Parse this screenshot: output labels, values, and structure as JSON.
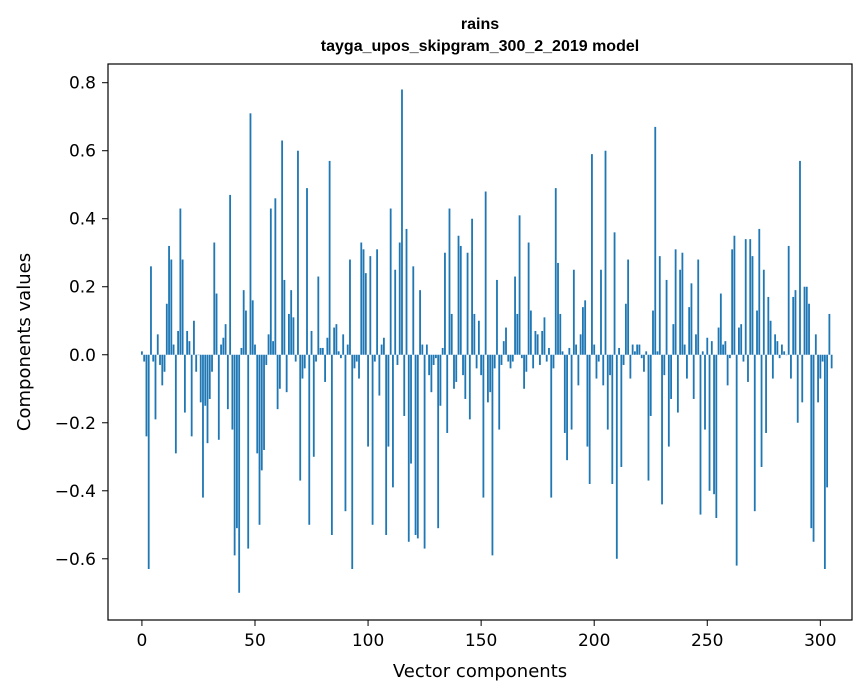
{
  "chart_data": {
    "type": "bar",
    "title": "rains",
    "subtitle": "tayga_upos_skipgram_300_2_2019 model",
    "xlabel": "Vector components",
    "ylabel": "Components values",
    "xlim": [
      -15.0,
      314.0
    ],
    "ylim": [
      -0.78,
      0.855
    ],
    "xticks": [
      0,
      50,
      100,
      150,
      200,
      250,
      300
    ],
    "xtick_labels": [
      "0",
      "50",
      "100",
      "150",
      "200",
      "250",
      "300"
    ],
    "yticks": [
      -0.6,
      -0.4,
      -0.2,
      0.0,
      0.2,
      0.4,
      0.6,
      0.8
    ],
    "ytick_labels": [
      "−0.6",
      "−0.4",
      "−0.2",
      "0.0",
      "0.2",
      "0.4",
      "0.6",
      "0.8"
    ],
    "bar_color": "#1f77b4",
    "grid": false,
    "legend": "none",
    "values": [
      0.01,
      -0.02,
      -0.24,
      -0.63,
      0.26,
      -0.02,
      -0.19,
      0.06,
      -0.03,
      -0.09,
      -0.05,
      0.15,
      0.32,
      0.28,
      0.03,
      -0.29,
      0.07,
      0.43,
      0.28,
      -0.17,
      0.07,
      0.04,
      -0.24,
      0.1,
      -0.05,
      0.0,
      -0.14,
      -0.42,
      -0.15,
      -0.26,
      -0.13,
      -0.05,
      0.33,
      0.18,
      -0.25,
      0.03,
      0.05,
      0.09,
      -0.16,
      0.47,
      -0.22,
      -0.59,
      -0.51,
      -0.7,
      0.02,
      0.19,
      0.13,
      -0.57,
      0.71,
      0.16,
      0.03,
      -0.29,
      -0.5,
      -0.34,
      -0.28,
      -0.03,
      0.06,
      0.43,
      0.04,
      0.46,
      -0.16,
      -0.1,
      0.63,
      0.22,
      -0.11,
      0.12,
      0.19,
      0.11,
      -0.02,
      0.6,
      -0.37,
      -0.07,
      -0.04,
      0.49,
      -0.5,
      0.07,
      -0.3,
      -0.02,
      0.23,
      0.02,
      0.02,
      -0.08,
      0.05,
      0.57,
      -0.53,
      0.08,
      0.09,
      0.01,
      -0.01,
      0.06,
      -0.46,
      0.03,
      0.28,
      -0.63,
      -0.04,
      -0.02,
      -0.07,
      0.33,
      0.31,
      0.24,
      -0.27,
      0.29,
      -0.5,
      -0.02,
      0.31,
      -0.12,
      0.03,
      0.05,
      -0.53,
      -0.27,
      0.43,
      -0.39,
      0.25,
      -0.03,
      0.33,
      0.78,
      -0.18,
      0.37,
      -0.55,
      -0.32,
      0.26,
      -0.53,
      -0.54,
      0.19,
      0.03,
      -0.57,
      0.03,
      -0.06,
      -0.11,
      -0.03,
      -0.01,
      -0.51,
      -0.15,
      0.02,
      0.3,
      -0.23,
      0.43,
      0.12,
      -0.1,
      -0.08,
      0.35,
      0.32,
      -0.06,
      -0.13,
      0.3,
      -0.19,
      0.4,
      0.12,
      -0.04,
      0.1,
      -0.06,
      -0.42,
      0.48,
      -0.14,
      -0.11,
      -0.59,
      -0.04,
      0.22,
      -0.22,
      -0.03,
      0.04,
      0.08,
      -0.02,
      -0.04,
      -0.02,
      0.23,
      0.12,
      0.41,
      -0.01,
      -0.1,
      -0.05,
      0.33,
      0.13,
      -0.04,
      0.07,
      0.06,
      -0.03,
      0.07,
      0.11,
      -0.02,
      0.02,
      -0.42,
      -0.04,
      0.49,
      0.27,
      0.12,
      0.01,
      -0.23,
      -0.31,
      0.02,
      -0.22,
      0.25,
      0.03,
      -0.09,
      0.06,
      0.14,
      0.16,
      -0.27,
      -0.38,
      0.59,
      0.03,
      -0.07,
      -0.02,
      0.25,
      -0.09,
      0.6,
      -0.22,
      -0.06,
      -0.38,
      0.36,
      -0.6,
      0.02,
      -0.33,
      -0.03,
      0.15,
      0.28,
      -0.07,
      0.03,
      0.01,
      0.03,
      0.03,
      -0.01,
      -0.05,
      0.01,
      -0.37,
      -0.18,
      0.13,
      0.67,
      0.01,
      0.29,
      -0.44,
      -0.06,
      0.22,
      -0.27,
      -0.13,
      0.09,
      0.31,
      -0.17,
      0.25,
      0.3,
      0.03,
      -0.07,
      0.14,
      0.21,
      -0.13,
      0.06,
      0.28,
      -0.47,
      0.01,
      -0.22,
      0.05,
      -0.4,
      0.04,
      -0.41,
      -0.48,
      0.08,
      0.18,
      0.03,
      0.04,
      -0.09,
      -0.01,
      0.31,
      0.35,
      -0.62,
      0.08,
      0.09,
      -0.02,
      0.34,
      -0.08,
      0.34,
      0.29,
      -0.46,
      0.13,
      0.37,
      -0.33,
      0.25,
      -0.23,
      0.17,
      0.1,
      -0.07,
      0.06,
      0.04,
      -0.01,
      0.03,
      0.01,
      0.0,
      0.32,
      -0.07,
      0.17,
      0.19,
      -0.2,
      0.57,
      -0.14,
      0.2,
      0.2,
      0.15,
      -0.51,
      -0.55,
      0.06,
      -0.14,
      -0.07,
      -0.02,
      -0.63,
      -0.39,
      0.12,
      -0.04
    ]
  }
}
